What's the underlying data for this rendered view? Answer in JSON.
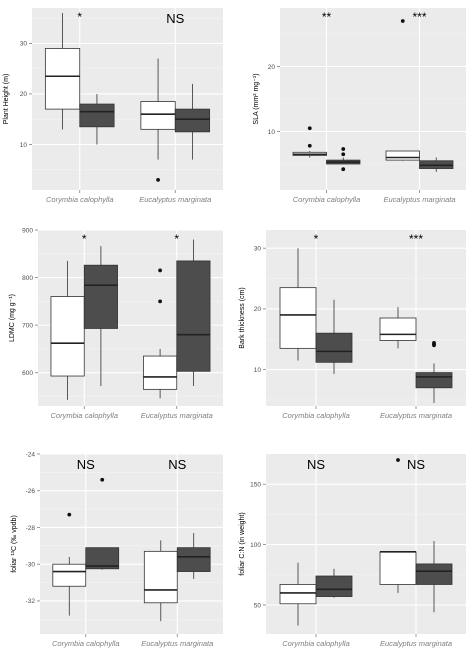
{
  "colors": {
    "panel_bg": "#ebebeb",
    "grid": "#ffffff",
    "box_white": "#ffffff",
    "box_dark": "#4d4d4d",
    "line": "#333333"
  },
  "chart_data": [
    {
      "type": "boxplot",
      "ylabel": "Plant Height (m)",
      "yticks": [
        10,
        20,
        30
      ],
      "ylim": [
        1,
        37
      ],
      "categories": [
        "Corymbia calophylla",
        "Eucalyptus marginata"
      ],
      "significance": [
        "*",
        "NS"
      ],
      "groups": [
        {
          "white": {
            "min": 13,
            "q1": 17,
            "median": 23.5,
            "q3": 29,
            "max": 36,
            "outliers": []
          },
          "dark": {
            "min": 10,
            "q1": 13.5,
            "median": 16.5,
            "q3": 18,
            "max": 20,
            "outliers": []
          }
        },
        {
          "white": {
            "min": 7,
            "q1": 13,
            "median": 16,
            "q3": 18.5,
            "max": 27,
            "outliers": [
              3
            ]
          },
          "dark": {
            "min": 7,
            "q1": 12.5,
            "median": 15,
            "q3": 17,
            "max": 22,
            "outliers": []
          }
        }
      ]
    },
    {
      "type": "boxplot",
      "ylabel": "SLA (mm² mg⁻¹)",
      "yticks": [
        10,
        20
      ],
      "ylim": [
        1,
        29
      ],
      "categories": [
        "Corymbia calophylla",
        "Eucalyptus marginata"
      ],
      "significance": [
        "**",
        "***"
      ],
      "groups": [
        {
          "white": {
            "min": 6,
            "q1": 6.3,
            "median": 6.5,
            "q3": 6.8,
            "max": 7,
            "outliers": [
              7.8,
              10.5
            ]
          },
          "dark": {
            "min": 5,
            "q1": 5,
            "median": 5.3,
            "q3": 5.6,
            "max": 6,
            "outliers": [
              4.2,
              6.5,
              7.3
            ]
          }
        },
        {
          "white": {
            "min": 5.5,
            "q1": 5.6,
            "median": 6,
            "q3": 7,
            "max": 7,
            "outliers": [
              27
            ]
          },
          "dark": {
            "min": 3.8,
            "q1": 4.3,
            "median": 4.8,
            "q3": 5.5,
            "max": 6,
            "outliers": []
          }
        }
      ]
    },
    {
      "type": "boxplot",
      "ylabel": "LDMC (mg g⁻¹)",
      "yticks": [
        600,
        700,
        800,
        900
      ],
      "ylim": [
        530,
        900
      ],
      "categories": [
        "Corymbia calophylla",
        "Eucalyptus marginata"
      ],
      "significance": [
        "*",
        "*"
      ],
      "groups": [
        {
          "white": {
            "min": 543,
            "q1": 593,
            "median": 662,
            "q3": 760,
            "max": 835,
            "outliers": []
          },
          "dark": {
            "min": 572,
            "q1": 693,
            "median": 784,
            "q3": 826,
            "max": 866,
            "outliers": []
          }
        },
        {
          "white": {
            "min": 546,
            "q1": 565,
            "median": 591,
            "q3": 635,
            "max": 650,
            "outliers": [
              750,
              815
            ]
          },
          "dark": {
            "min": 572,
            "q1": 603,
            "median": 680,
            "q3": 835,
            "max": 880,
            "outliers": []
          }
        }
      ]
    },
    {
      "type": "boxplot",
      "ylabel": "Bark thickness (cm)",
      "yticks": [
        10,
        20,
        30
      ],
      "ylim": [
        4,
        33
      ],
      "categories": [
        "Corymbia calophylla",
        "Eucalyptus marginata"
      ],
      "significance": [
        "*",
        "***"
      ],
      "groups": [
        {
          "white": {
            "min": 11.5,
            "q1": 13.5,
            "median": 19,
            "q3": 23.5,
            "max": 30,
            "outliers": []
          },
          "dark": {
            "min": 9.3,
            "q1": 11.2,
            "median": 13,
            "q3": 16,
            "max": 21.5,
            "outliers": []
          }
        },
        {
          "white": {
            "min": 13.5,
            "q1": 14.8,
            "median": 15.8,
            "q3": 18.5,
            "max": 20.3,
            "outliers": []
          },
          "dark": {
            "min": 4.5,
            "q1": 7,
            "median": 8.8,
            "q3": 9.5,
            "max": 11,
            "outliers": [
              14,
              14.2,
              14.4
            ]
          }
        }
      ]
    },
    {
      "type": "boxplot",
      "ylabel": "foliar ¹³C (‰ vpdb)",
      "yticks": [
        -32,
        -30,
        -28,
        -26,
        -24
      ],
      "ylim": [
        -33.8,
        -24
      ],
      "categories": [
        "Corymbia calophylla",
        "Eucalyptus marginata"
      ],
      "significance": [
        "NS",
        "NS"
      ],
      "groups": [
        {
          "white": {
            "min": -32.8,
            "q1": -31.2,
            "median": -30.4,
            "q3": -30.0,
            "max": -29.6,
            "outliers": [
              -27.3
            ]
          },
          "dark": {
            "min": -30.3,
            "q1": -30.25,
            "median": -30.1,
            "q3": -29.1,
            "max": -29.1,
            "outliers": [
              -25.4
            ]
          }
        },
        {
          "white": {
            "min": -33.1,
            "q1": -32.1,
            "median": -31.4,
            "q3": -29.3,
            "max": -28.7,
            "outliers": []
          },
          "dark": {
            "min": -30.8,
            "q1": -30.4,
            "median": -29.6,
            "q3": -29.1,
            "max": -28.3,
            "outliers": []
          }
        }
      ]
    },
    {
      "type": "boxplot",
      "ylabel": "foliar C:N (in weight)",
      "yticks": [
        50,
        100,
        150
      ],
      "ylim": [
        26,
        175
      ],
      "categories": [
        "Corymbia calophylla",
        "Eucalyptus marginata"
      ],
      "significance": [
        "NS",
        "NS"
      ],
      "groups": [
        {
          "white": {
            "min": 33,
            "q1": 51,
            "median": 60,
            "q3": 67,
            "max": 85,
            "outliers": []
          },
          "dark": {
            "min": 56,
            "q1": 57,
            "median": 63,
            "q3": 74,
            "max": 80,
            "outliers": []
          }
        },
        {
          "white": {
            "min": 60,
            "q1": 67,
            "median": 94,
            "q3": 94,
            "max": 94,
            "outliers": [
              170
            ]
          },
          "dark": {
            "min": 44,
            "q1": 67,
            "median": 78,
            "q3": 84,
            "max": 103,
            "outliers": []
          }
        }
      ]
    }
  ]
}
